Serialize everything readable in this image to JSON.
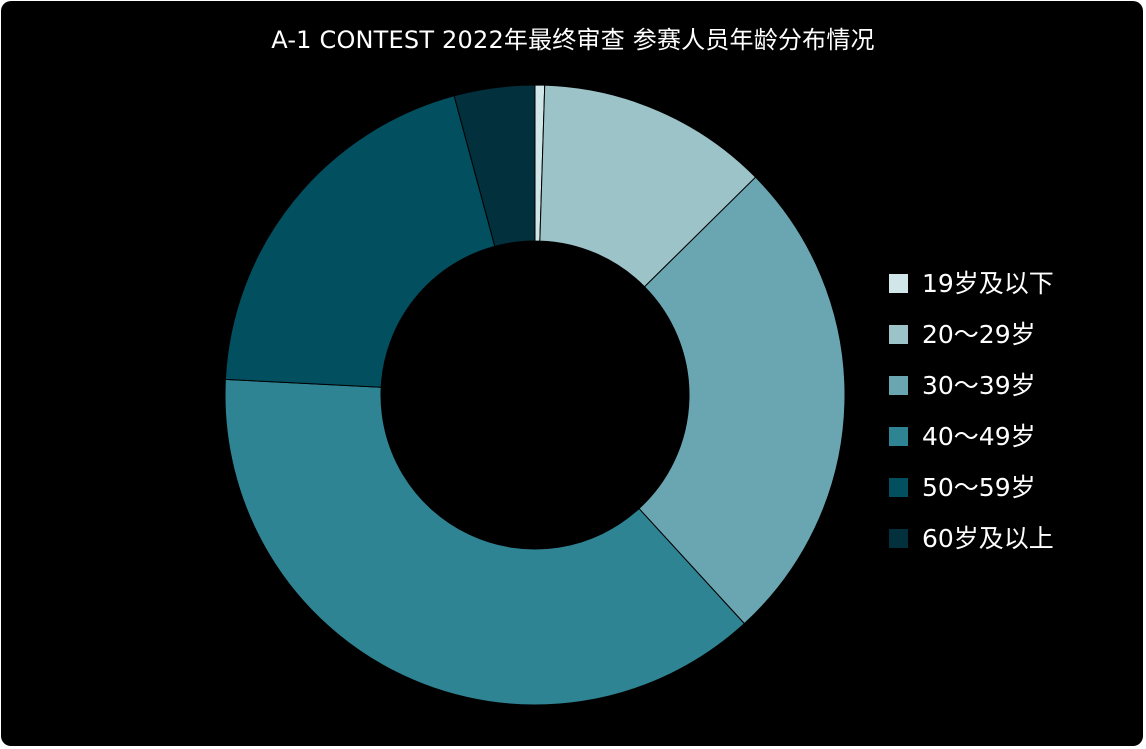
{
  "chart_data": {
    "type": "pie",
    "title": "A-1 CONTEST 2022年最终审查 参赛人员年龄分布情况",
    "categories": [
      "19岁及以下",
      "20～29岁",
      "30～39岁",
      "40～49岁",
      "50～59岁",
      "60岁及以上"
    ],
    "values": [
      0.5,
      12.1,
      25.6,
      37.6,
      20.0,
      4.2
    ],
    "unit": "%",
    "colors": [
      "#d0e6e8",
      "#9cc3c8",
      "#6aa6b2",
      "#2f8494",
      "#024f60",
      "#02313d"
    ],
    "donut": true,
    "legend_position": "right"
  }
}
